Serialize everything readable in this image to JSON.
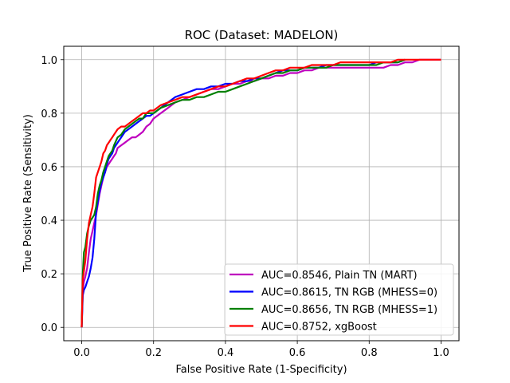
{
  "chart_data": {
    "type": "line",
    "title": "ROC (Dataset: MADELON)",
    "xlabel": "False Positive Rate (1-Specificity)",
    "ylabel": "True Positive Rate (Sensitivity)",
    "xlim": [
      -0.05,
      1.05
    ],
    "ylim": [
      -0.05,
      1.05
    ],
    "x_ticks": [
      "0.0",
      "0.2",
      "0.4",
      "0.6",
      "0.8",
      "1.0"
    ],
    "y_ticks": [
      "0.0",
      "0.2",
      "0.4",
      "0.6",
      "0.8",
      "1.0"
    ],
    "grid": true,
    "legend_position": "lower-right",
    "series": [
      {
        "name": "AUC=0.8546, Plain TN (MART)",
        "color": "#bf00bf",
        "x": [
          0.0,
          0.003,
          0.006,
          0.01,
          0.015,
          0.02,
          0.025,
          0.03,
          0.035,
          0.04,
          0.045,
          0.05,
          0.055,
          0.06,
          0.065,
          0.07,
          0.075,
          0.08,
          0.085,
          0.09,
          0.095,
          0.1,
          0.11,
          0.12,
          0.13,
          0.14,
          0.15,
          0.16,
          0.17,
          0.18,
          0.19,
          0.2,
          0.22,
          0.24,
          0.26,
          0.28,
          0.3,
          0.32,
          0.34,
          0.36,
          0.38,
          0.4,
          0.42,
          0.44,
          0.46,
          0.48,
          0.5,
          0.52,
          0.54,
          0.56,
          0.58,
          0.6,
          0.62,
          0.64,
          0.66,
          0.68,
          0.7,
          0.72,
          0.74,
          0.76,
          0.78,
          0.8,
          0.82,
          0.84,
          0.86,
          0.88,
          0.9,
          0.92,
          0.94,
          0.96,
          0.98,
          1.0
        ],
        "y": [
          0.0,
          0.14,
          0.17,
          0.19,
          0.22,
          0.28,
          0.33,
          0.36,
          0.39,
          0.42,
          0.46,
          0.5,
          0.53,
          0.56,
          0.58,
          0.6,
          0.61,
          0.62,
          0.63,
          0.64,
          0.65,
          0.67,
          0.68,
          0.69,
          0.7,
          0.71,
          0.71,
          0.72,
          0.73,
          0.75,
          0.76,
          0.78,
          0.8,
          0.82,
          0.84,
          0.85,
          0.86,
          0.87,
          0.88,
          0.89,
          0.89,
          0.9,
          0.91,
          0.91,
          0.92,
          0.92,
          0.93,
          0.93,
          0.94,
          0.94,
          0.95,
          0.95,
          0.96,
          0.96,
          0.97,
          0.97,
          0.97,
          0.97,
          0.97,
          0.97,
          0.97,
          0.97,
          0.97,
          0.97,
          0.98,
          0.98,
          0.99,
          0.99,
          1.0,
          1.0,
          1.0,
          1.0
        ]
      },
      {
        "name": "AUC=0.8615, TN RGB (MHESS=0)",
        "color": "#0000ff",
        "x": [
          0.0,
          0.003,
          0.006,
          0.01,
          0.015,
          0.02,
          0.025,
          0.03,
          0.035,
          0.04,
          0.045,
          0.05,
          0.055,
          0.06,
          0.065,
          0.07,
          0.075,
          0.08,
          0.085,
          0.09,
          0.1,
          0.11,
          0.12,
          0.13,
          0.14,
          0.15,
          0.16,
          0.17,
          0.18,
          0.19,
          0.2,
          0.22,
          0.24,
          0.26,
          0.28,
          0.3,
          0.32,
          0.34,
          0.36,
          0.38,
          0.4,
          0.42,
          0.44,
          0.46,
          0.48,
          0.5,
          0.52,
          0.54,
          0.56,
          0.58,
          0.6,
          0.62,
          0.64,
          0.66,
          0.68,
          0.7,
          0.72,
          0.74,
          0.76,
          0.78,
          0.8,
          0.82,
          0.84,
          0.86,
          0.88,
          0.9
        ],
        "y": [
          0.0,
          0.12,
          0.14,
          0.15,
          0.17,
          0.19,
          0.22,
          0.26,
          0.33,
          0.43,
          0.47,
          0.51,
          0.54,
          0.56,
          0.58,
          0.61,
          0.63,
          0.64,
          0.65,
          0.67,
          0.69,
          0.71,
          0.73,
          0.74,
          0.75,
          0.76,
          0.77,
          0.78,
          0.79,
          0.79,
          0.8,
          0.82,
          0.84,
          0.86,
          0.87,
          0.88,
          0.89,
          0.89,
          0.9,
          0.9,
          0.91,
          0.91,
          0.92,
          0.92,
          0.93,
          0.93,
          0.94,
          0.95,
          0.96,
          0.96,
          0.96,
          0.97,
          0.97,
          0.97,
          0.98,
          0.98,
          0.98,
          0.98,
          0.98,
          0.98,
          0.98,
          0.99,
          0.99,
          0.99,
          0.99,
          1.0
        ]
      },
      {
        "name": "AUC=0.8656, TN RGB (MHESS=1)",
        "color": "#008000",
        "x": [
          0.0,
          0.003,
          0.006,
          0.01,
          0.015,
          0.02,
          0.025,
          0.03,
          0.035,
          0.04,
          0.045,
          0.05,
          0.055,
          0.06,
          0.065,
          0.07,
          0.075,
          0.08,
          0.085,
          0.09,
          0.1,
          0.11,
          0.12,
          0.13,
          0.14,
          0.15,
          0.16,
          0.17,
          0.18,
          0.19,
          0.2,
          0.22,
          0.24,
          0.26,
          0.28,
          0.3,
          0.32,
          0.34,
          0.36,
          0.38,
          0.4,
          0.42,
          0.44,
          0.46,
          0.48,
          0.5,
          0.52,
          0.54,
          0.56,
          0.58,
          0.6,
          0.62,
          0.64,
          0.66,
          0.68,
          0.7,
          0.72,
          0.74,
          0.76,
          0.78,
          0.8,
          0.82,
          0.84,
          0.86,
          0.88,
          0.9
        ],
        "y": [
          0.0,
          0.2,
          0.28,
          0.3,
          0.35,
          0.38,
          0.4,
          0.41,
          0.42,
          0.45,
          0.5,
          0.53,
          0.55,
          0.58,
          0.6,
          0.62,
          0.64,
          0.65,
          0.66,
          0.68,
          0.71,
          0.72,
          0.74,
          0.75,
          0.76,
          0.77,
          0.78,
          0.78,
          0.8,
          0.8,
          0.8,
          0.82,
          0.83,
          0.84,
          0.85,
          0.85,
          0.86,
          0.86,
          0.87,
          0.88,
          0.88,
          0.89,
          0.9,
          0.91,
          0.92,
          0.93,
          0.94,
          0.95,
          0.95,
          0.96,
          0.96,
          0.97,
          0.97,
          0.97,
          0.97,
          0.98,
          0.98,
          0.98,
          0.98,
          0.98,
          0.98,
          0.98,
          0.99,
          0.99,
          0.99,
          1.0
        ]
      },
      {
        "name": "AUC=0.8752, xgBoost",
        "color": "#ff0000",
        "x": [
          0.0,
          0.003,
          0.006,
          0.01,
          0.015,
          0.02,
          0.025,
          0.03,
          0.035,
          0.04,
          0.045,
          0.05,
          0.055,
          0.06,
          0.065,
          0.07,
          0.075,
          0.08,
          0.085,
          0.09,
          0.1,
          0.11,
          0.12,
          0.13,
          0.14,
          0.15,
          0.16,
          0.17,
          0.18,
          0.19,
          0.2,
          0.22,
          0.24,
          0.26,
          0.28,
          0.3,
          0.32,
          0.34,
          0.36,
          0.38,
          0.4,
          0.42,
          0.44,
          0.46,
          0.48,
          0.5,
          0.52,
          0.54,
          0.56,
          0.58,
          0.6,
          0.62,
          0.64,
          0.66,
          0.68,
          0.7,
          0.72,
          0.74,
          0.76,
          0.78,
          0.8,
          0.82,
          0.84,
          0.86,
          0.88,
          0.9,
          0.92,
          0.94,
          0.96,
          0.98,
          1.0
        ],
        "y": [
          0.0,
          0.18,
          0.21,
          0.25,
          0.33,
          0.39,
          0.42,
          0.45,
          0.5,
          0.56,
          0.58,
          0.6,
          0.62,
          0.65,
          0.66,
          0.68,
          0.69,
          0.7,
          0.71,
          0.72,
          0.74,
          0.75,
          0.75,
          0.76,
          0.77,
          0.78,
          0.79,
          0.8,
          0.8,
          0.81,
          0.81,
          0.83,
          0.84,
          0.85,
          0.86,
          0.86,
          0.87,
          0.88,
          0.89,
          0.9,
          0.9,
          0.91,
          0.92,
          0.93,
          0.93,
          0.94,
          0.95,
          0.96,
          0.96,
          0.97,
          0.97,
          0.97,
          0.98,
          0.98,
          0.98,
          0.98,
          0.99,
          0.99,
          0.99,
          0.99,
          0.99,
          0.99,
          0.99,
          0.99,
          1.0,
          1.0,
          1.0,
          1.0,
          1.0,
          1.0,
          1.0
        ]
      }
    ]
  }
}
